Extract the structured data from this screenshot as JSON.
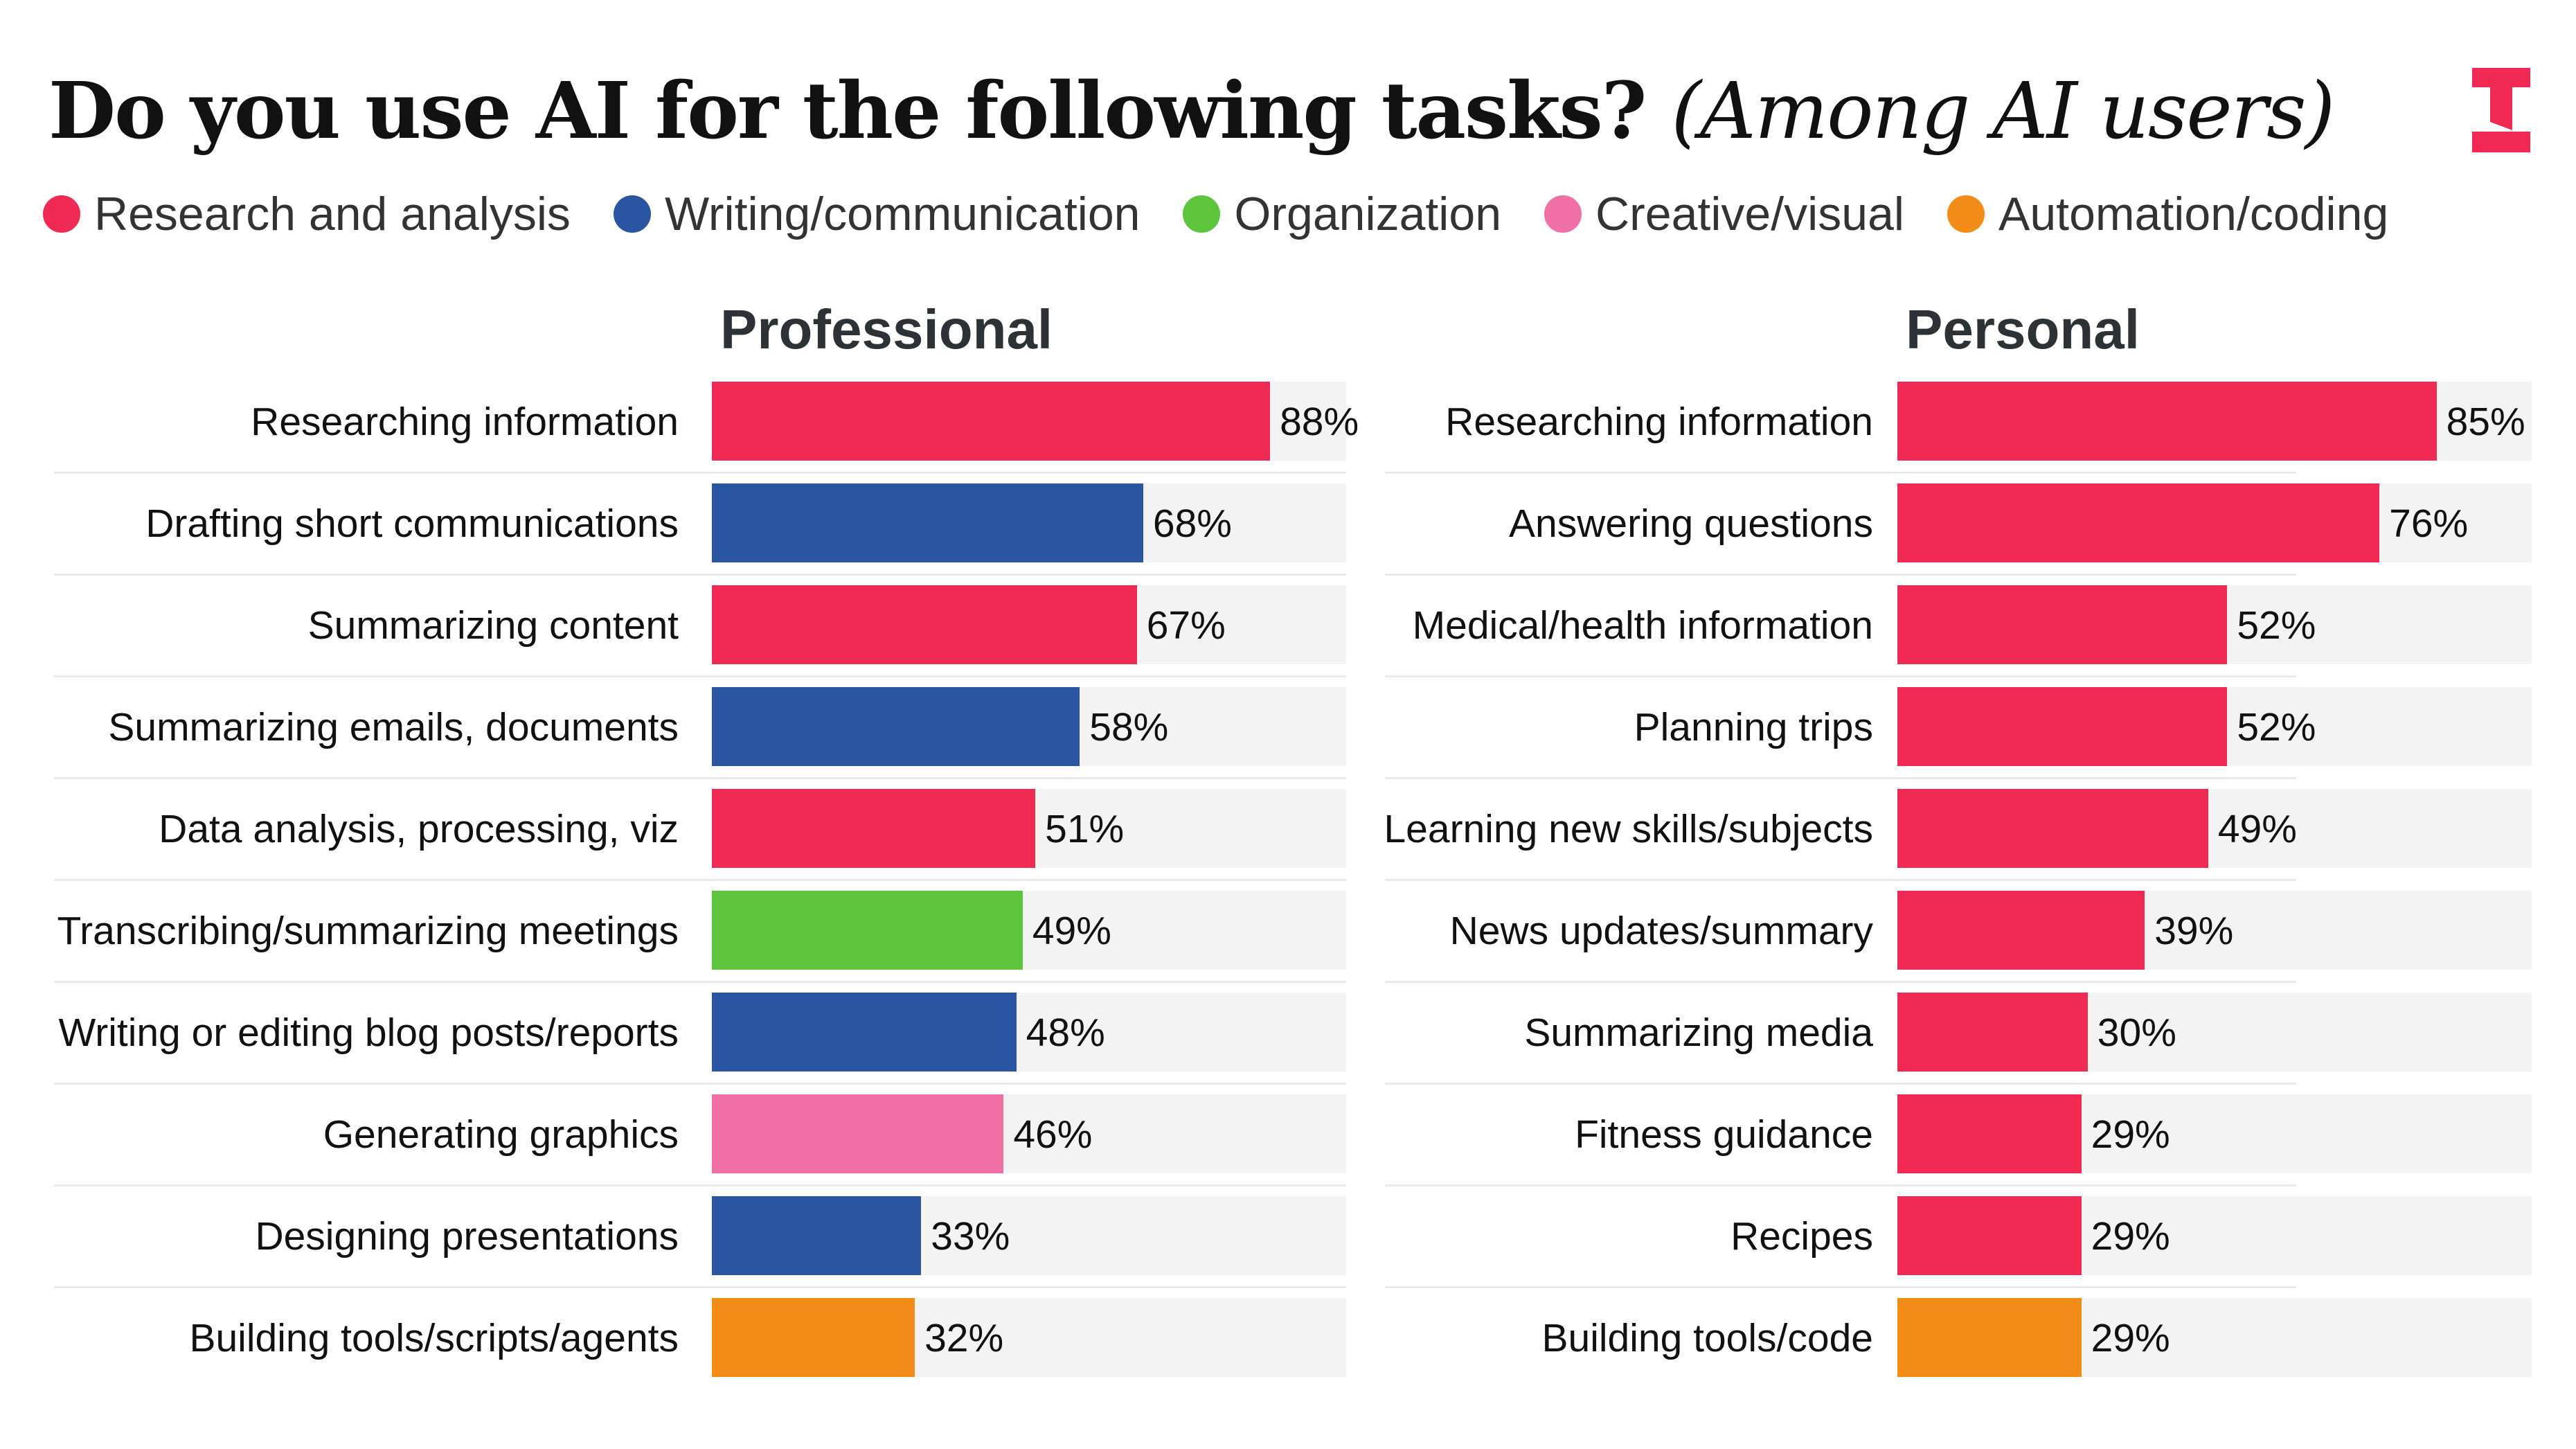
{
  "title": {
    "main": "Do you use AI for the following tasks?",
    "sub": "(Among AI users)"
  },
  "logo": {
    "icon": "I-logo",
    "color": "#f02a52"
  },
  "colors": {
    "Research and analysis": "#f02a52",
    "Writing/communication": "#2a55a1",
    "Organization": "#5cc43d",
    "Creative/visual": "#ef6fa6",
    "Automation/coding": "#f28c16"
  },
  "legend": [
    "Research and analysis",
    "Writing/communication",
    "Organization",
    "Creative/visual",
    "Automation/coding"
  ],
  "chart_data": [
    {
      "type": "bar",
      "orientation": "horizontal",
      "title": "Professional",
      "xlim": [
        0,
        100
      ],
      "unit": "%",
      "categories": [
        "Researching information",
        "Drafting short communications",
        "Summarizing content",
        "Summarizing emails, documents",
        "Data analysis, processing, viz",
        "Transcribing/summarizing meetings",
        "Writing or editing blog posts/reports",
        "Generating graphics",
        "Designing presentations",
        "Building tools/scripts/agents"
      ],
      "values": [
        88,
        68,
        67,
        58,
        51,
        49,
        48,
        46,
        33,
        32
      ],
      "labels": [
        "88%",
        "68%",
        "67%",
        "58%",
        "51%",
        "49%",
        "48%",
        "46%",
        "33%",
        "32%"
      ],
      "groups": [
        "Research and analysis",
        "Writing/communication",
        "Research and analysis",
        "Writing/communication",
        "Research and analysis",
        "Organization",
        "Writing/communication",
        "Creative/visual",
        "Writing/communication",
        "Automation/coding"
      ]
    },
    {
      "type": "bar",
      "orientation": "horizontal",
      "title": "Personal",
      "xlim": [
        0,
        100
      ],
      "unit": "%",
      "categories": [
        "Researching information",
        "Answering questions",
        "Medical/health information",
        "Planning trips",
        "Learning new skills/subjects",
        "News updates/summary",
        "Summarizing media",
        "Fitness guidance",
        "Recipes",
        "Building tools/code"
      ],
      "values": [
        85,
        76,
        52,
        52,
        49,
        39,
        30,
        29,
        29,
        29
      ],
      "labels": [
        "85%",
        "76%",
        "52%",
        "52%",
        "49%",
        "39%",
        "30%",
        "29%",
        "29%",
        "29%"
      ],
      "groups": [
        "Research and analysis",
        "Research and analysis",
        "Research and analysis",
        "Research and analysis",
        "Research and analysis",
        "Research and analysis",
        "Research and analysis",
        "Research and analysis",
        "Research and analysis",
        "Automation/coding"
      ]
    }
  ]
}
